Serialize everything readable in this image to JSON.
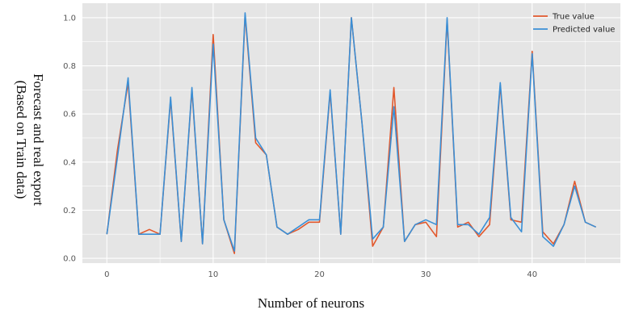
{
  "chart_data": {
    "type": "line",
    "xlabel": "Number of neurons",
    "ylabel_lines": [
      "Forecast and real export",
      "(Based on Train data)"
    ],
    "xlim": [
      -2.3,
      48.3
    ],
    "ylim": [
      -0.02,
      1.06
    ],
    "xticks": [
      0,
      10,
      20,
      30,
      40
    ],
    "yticks": [
      0.0,
      0.2,
      0.4,
      0.6,
      0.8,
      1.0
    ],
    "ytick_labels": [
      "0.0",
      "0.2",
      "0.4",
      "0.6",
      "0.8",
      "1.0"
    ],
    "grid": true,
    "legend_position": "top-right",
    "x": [
      0,
      1,
      2,
      3,
      4,
      5,
      6,
      7,
      8,
      9,
      10,
      11,
      12,
      13,
      14,
      15,
      16,
      17,
      18,
      19,
      20,
      21,
      22,
      23,
      24,
      25,
      26,
      27,
      28,
      29,
      30,
      31,
      32,
      33,
      34,
      35,
      36,
      37,
      38,
      39,
      40,
      41,
      42,
      43,
      44,
      45,
      46
    ],
    "series": [
      {
        "name": "True value",
        "color": "#e2582c",
        "values": [
          0.1,
          0.45,
          0.73,
          0.1,
          0.12,
          0.1,
          0.66,
          0.07,
          0.7,
          0.06,
          0.93,
          0.16,
          0.02,
          1.01,
          0.48,
          0.43,
          0.13,
          0.1,
          0.12,
          0.15,
          0.15,
          0.69,
          0.1,
          1.0,
          0.56,
          0.05,
          0.13,
          0.71,
          0.07,
          0.14,
          0.15,
          0.09,
          0.99,
          0.13,
          0.15,
          0.09,
          0.14,
          0.72,
          0.16,
          0.15,
          0.86,
          0.11,
          0.06,
          0.14,
          0.32,
          0.15,
          0.13
        ]
      },
      {
        "name": "Predicted value",
        "color": "#3a8fd6",
        "values": [
          0.1,
          0.42,
          0.75,
          0.1,
          0.1,
          0.1,
          0.67,
          0.07,
          0.71,
          0.06,
          0.89,
          0.16,
          0.03,
          1.02,
          0.5,
          0.43,
          0.13,
          0.1,
          0.13,
          0.16,
          0.16,
          0.7,
          0.1,
          1.0,
          0.56,
          0.08,
          0.13,
          0.63,
          0.07,
          0.14,
          0.16,
          0.14,
          1.0,
          0.14,
          0.14,
          0.1,
          0.17,
          0.73,
          0.17,
          0.11,
          0.85,
          0.09,
          0.05,
          0.14,
          0.3,
          0.15,
          0.13
        ]
      }
    ]
  }
}
